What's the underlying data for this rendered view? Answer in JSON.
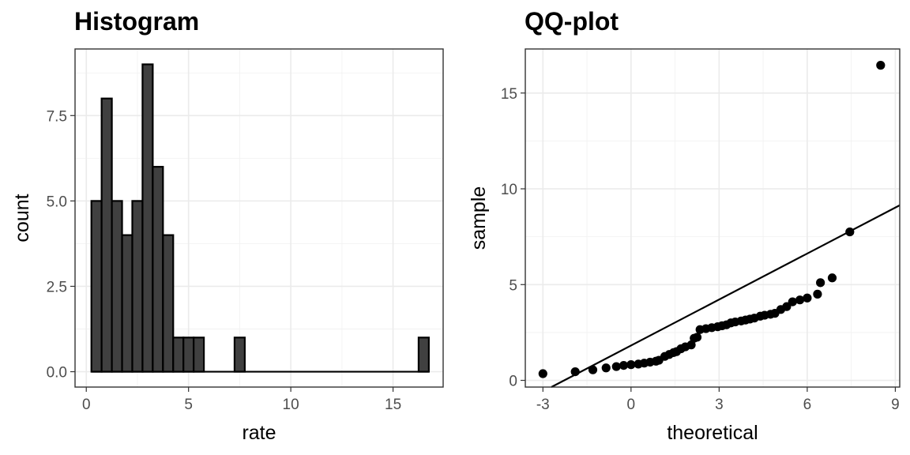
{
  "chart_data": [
    {
      "type": "bar",
      "title": "Histogram",
      "xlabel": "rate",
      "ylabel": "count",
      "xlim": [
        -0.55,
        17.45
      ],
      "ylim": [
        -0.45,
        9.45
      ],
      "x_ticks": [
        0,
        5,
        10,
        15
      ],
      "y_ticks": [
        0.0,
        2.5,
        5.0,
        7.5
      ],
      "x_tick_labels": [
        "0",
        "5",
        "10",
        "15"
      ],
      "y_tick_labels": [
        "0.0",
        "2.5",
        "5.0",
        "7.5"
      ],
      "grid": true,
      "bin_start": 0.25,
      "bin_width": 0.5,
      "counts": [
        5,
        8,
        5,
        4,
        5,
        9,
        6,
        4,
        1,
        1,
        1,
        0,
        0,
        0,
        1,
        0,
        0,
        0,
        0,
        0,
        0,
        0,
        0,
        0,
        0,
        0,
        0,
        0,
        0,
        0,
        0,
        0,
        1
      ]
    },
    {
      "type": "scatter",
      "title": "QQ-plot",
      "xlabel": "theoretical",
      "ylabel": "sample",
      "xlim": [
        -3.6,
        9.15
      ],
      "ylim": [
        -0.35,
        17.3
      ],
      "x_ticks": [
        -3,
        0,
        3,
        6,
        9
      ],
      "y_ticks": [
        0,
        5,
        10,
        15
      ],
      "x_tick_labels": [
        "-3",
        "0",
        "3",
        "6",
        "9"
      ],
      "y_tick_labels": [
        "0",
        "5",
        "10",
        "15"
      ],
      "grid": true,
      "points": [
        [
          -3.0,
          0.35
        ],
        [
          -1.9,
          0.45
        ],
        [
          -1.3,
          0.55
        ],
        [
          -0.85,
          0.65
        ],
        [
          -0.5,
          0.72
        ],
        [
          -0.25,
          0.78
        ],
        [
          0.0,
          0.82
        ],
        [
          0.25,
          0.85
        ],
        [
          0.45,
          0.9
        ],
        [
          0.65,
          0.95
        ],
        [
          0.85,
          1.0
        ],
        [
          0.95,
          1.05
        ],
        [
          1.15,
          1.25
        ],
        [
          1.3,
          1.35
        ],
        [
          1.45,
          1.45
        ],
        [
          1.55,
          1.5
        ],
        [
          1.7,
          1.65
        ],
        [
          1.85,
          1.75
        ],
        [
          2.05,
          1.85
        ],
        [
          2.15,
          2.2
        ],
        [
          2.25,
          2.25
        ],
        [
          2.35,
          2.65
        ],
        [
          2.55,
          2.7
        ],
        [
          2.75,
          2.75
        ],
        [
          2.95,
          2.8
        ],
        [
          3.1,
          2.85
        ],
        [
          3.25,
          2.9
        ],
        [
          3.4,
          3.0
        ],
        [
          3.55,
          3.05
        ],
        [
          3.75,
          3.1
        ],
        [
          3.9,
          3.15
        ],
        [
          4.05,
          3.2
        ],
        [
          4.2,
          3.25
        ],
        [
          4.4,
          3.35
        ],
        [
          4.55,
          3.4
        ],
        [
          4.75,
          3.45
        ],
        [
          4.9,
          3.5
        ],
        [
          5.1,
          3.7
        ],
        [
          5.3,
          3.85
        ],
        [
          5.5,
          4.1
        ],
        [
          5.75,
          4.2
        ],
        [
          6.0,
          4.3
        ],
        [
          6.35,
          4.5
        ],
        [
          6.45,
          5.1
        ],
        [
          6.85,
          5.35
        ],
        [
          7.45,
          7.75
        ],
        [
          8.5,
          16.45
        ]
      ],
      "line": {
        "slope": 0.8,
        "intercept": 1.82
      }
    }
  ]
}
